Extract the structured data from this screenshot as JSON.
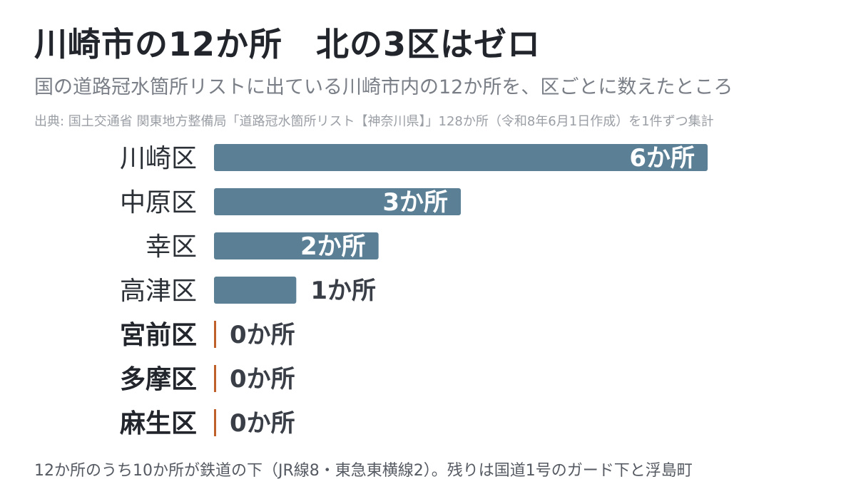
{
  "title": "川崎市の12か所　北の3区はゼロ",
  "subtitle": "国の道路冠水箇所リストに出ている川崎市内の12か所を、区ごとに数えたところ",
  "source": "出典: 国土交通省 関東地方整備局「道路冠水箇所リスト【神奈川県】」128か所（令和8年6月1日作成）を1件ずつ集計",
  "footnote": "12か所のうち10か所が鉄道の下（JR線8・東急東横線2）。残りは国道1号のガード下と浮島町",
  "colors": {
    "bar": "#5b7f95",
    "zero_marker": "#c0602b",
    "label_inside": "#ffffff",
    "label_outside": "#3a3f47"
  },
  "chart_data": {
    "type": "bar",
    "orientation": "horizontal",
    "categories": [
      "川崎区",
      "中原区",
      "幸区",
      "高津区",
      "宮前区",
      "多摩区",
      "麻生区"
    ],
    "values": [
      6,
      3,
      2,
      1,
      0,
      0,
      0
    ],
    "value_labels": [
      "6か所",
      "3か所",
      "2か所",
      "1か所",
      "0か所",
      "0か所",
      "0か所"
    ],
    "xlim": [
      0,
      6
    ],
    "grid": false
  }
}
